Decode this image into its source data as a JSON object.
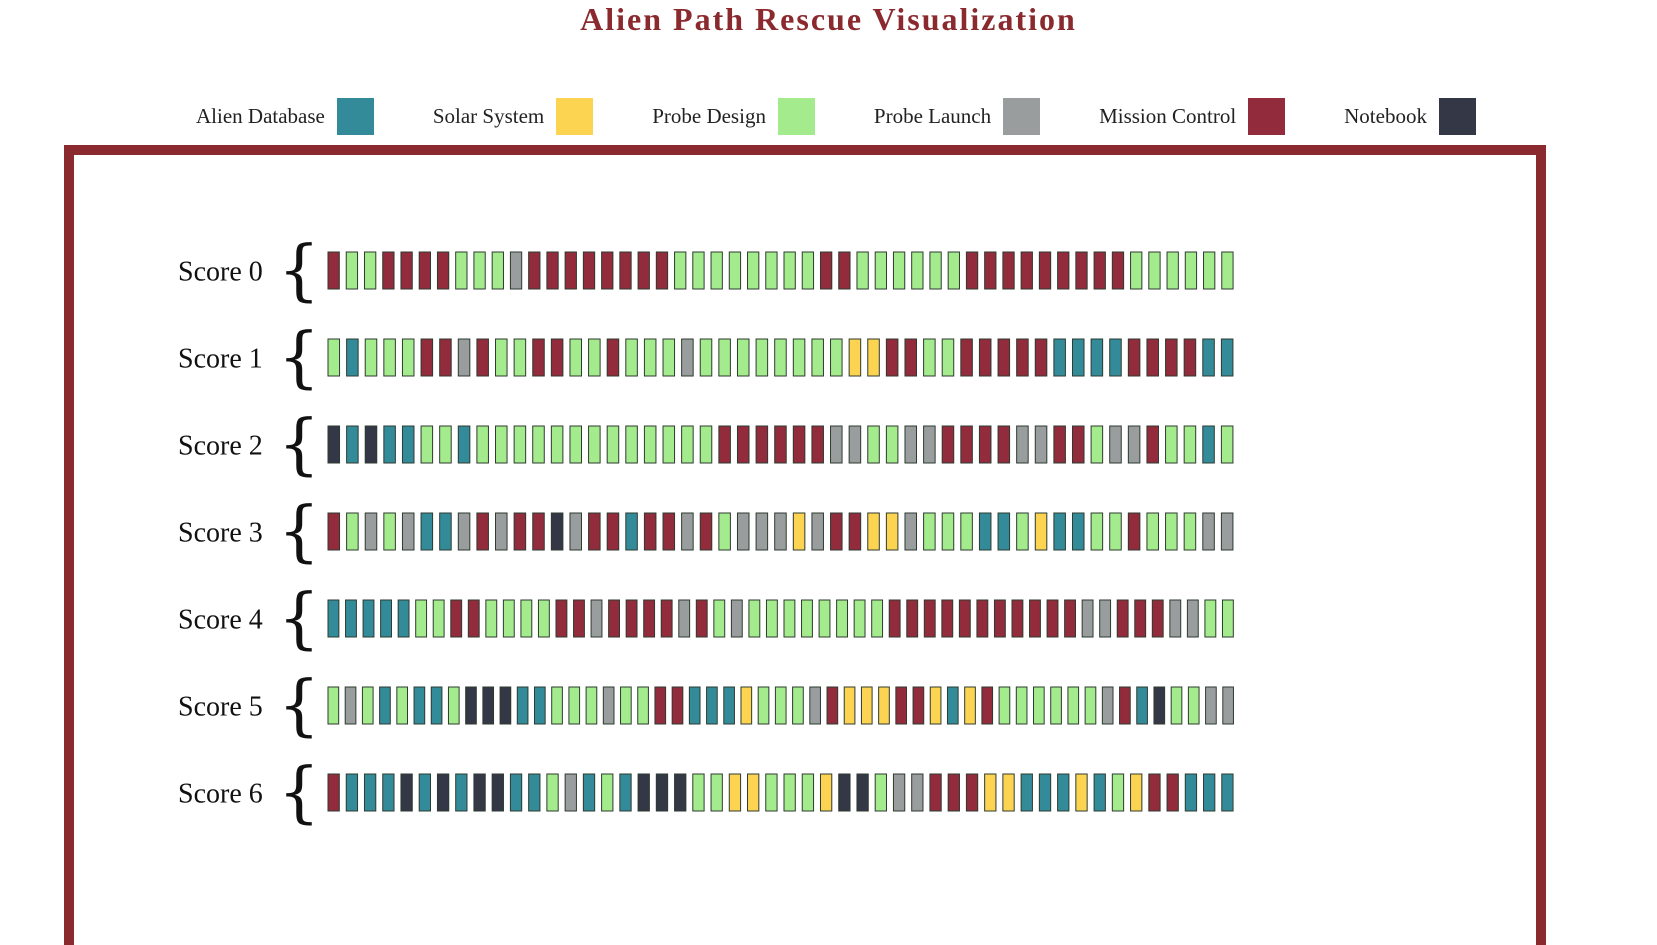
{
  "title": "Alien Path Rescue Visualization",
  "legend": [
    {
      "key": "A",
      "label": "Alien Database",
      "color": "#338b99"
    },
    {
      "key": "S",
      "label": "Solar System",
      "color": "#fdd452"
    },
    {
      "key": "P",
      "label": "Probe Design",
      "color": "#a3eb8c"
    },
    {
      "key": "L",
      "label": "Probe Launch",
      "color": "#999d9e"
    },
    {
      "key": "M",
      "label": "Mission Control",
      "color": "#922c3c"
    },
    {
      "key": "N",
      "label": "Notebook",
      "color": "#343745"
    }
  ],
  "chart_data": {
    "type": "heatmap",
    "title": "Alien Path Rescue Visualization",
    "categories": [
      "Alien Database",
      "Solar System",
      "Probe Design",
      "Probe Launch",
      "Mission Control",
      "Notebook"
    ],
    "rows": [
      {
        "label": "Score 0",
        "sequence": "MPPMMMMPPPLMMMMMMMMPPPPPPPPMMPPPPPPMMMMMMMMMPPPPPP"
      },
      {
        "label": "Score 1",
        "sequence": "PAPPPMMLMPPMMPPMPPPLPPPPPPPPSSMMPPMMMMMAAAAMMMMAA"
      },
      {
        "label": "Score 2",
        "sequence": "NANAAPPAPPPPPPPPPPPPPMMMMMMLLPPLLMMMMLLMMPLLMPPAP"
      },
      {
        "label": "Score 3",
        "sequence": "MPLPLAALMLMMNLMMAMMLMPLLLSLMMSSLPPPAAPSAAPPMPPPLL"
      },
      {
        "label": "Score 4",
        "sequence": "AAAAAPPMMPPPPMMLMMMMLMPLPPPPPPPPMMMMMMMMMMMLLMMMLLPP"
      },
      {
        "label": "Score 5",
        "sequence": "PLPAPAAPNNNAAPPPLPPMMAAASPPPLMSSSMMSASMPPPPPPLMANPPLL"
      },
      {
        "label": "Score 6",
        "sequence": "MAAANANANNAAPLAPANNNPPSSPPPSNNPLLMMMSSAAASAPSMMAAA"
      }
    ]
  }
}
